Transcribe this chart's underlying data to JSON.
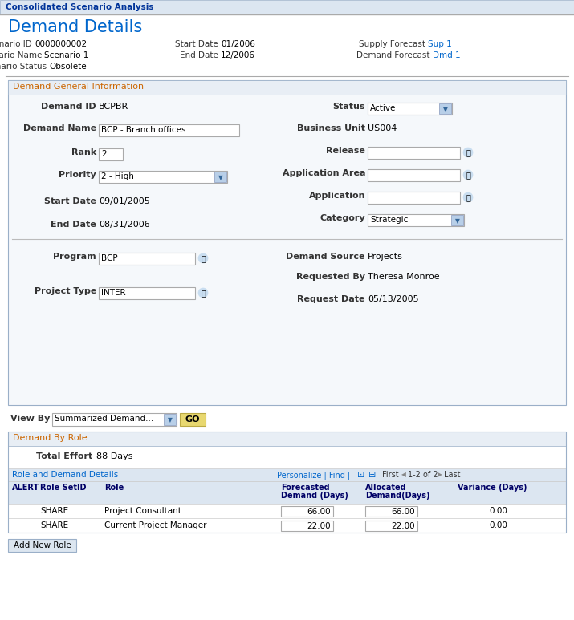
{
  "header_title": "Consolidated Scenario Analysis",
  "page_title": "Demand Details",
  "scenario_id_label": "Scenario ID",
  "scenario_id_value": "0000000002",
  "scenario_name_label": "Scenario Name",
  "scenario_name_value": "Scenario 1",
  "scenario_status_label": "Scenario Status",
  "scenario_status_value": "Obsolete",
  "start_date_label": "Start Date",
  "start_date_value": "01/2006",
  "end_date_label": "End Date",
  "end_date_value": "12/2006",
  "supply_forecast_label": "Supply Forecast",
  "supply_forecast_value": "Sup 1",
  "demand_forecast_label": "Demand Forecast",
  "demand_forecast_value": "Dmd 1",
  "section1_title": "Demand General Information",
  "demand_id_label": "Demand ID",
  "demand_id_value": "BCPBR",
  "demand_name_label": "Demand Name",
  "demand_name_value": "BCP - Branch offices",
  "rank_label": "Rank",
  "rank_value": "2",
  "priority_label": "Priority",
  "priority_value": "2 - High",
  "start_date2_label": "Start Date",
  "start_date2_value": "09/01/2005",
  "end_date2_label": "End Date",
  "end_date2_value": "08/31/2006",
  "status_label": "Status",
  "status_value": "Active",
  "business_unit_label": "Business Unit",
  "business_unit_value": "US004",
  "release_label": "Release",
  "app_area_label": "Application Area",
  "application_label": "Application",
  "category_label": "Category",
  "category_value": "Strategic",
  "program_label": "Program",
  "program_value": "BCP",
  "project_type_label": "Project Type",
  "project_type_value": "INTER",
  "demand_source_label": "Demand Source",
  "demand_source_value": "Projects",
  "requested_by_label": "Requested By",
  "requested_by_value": "Theresa Monroe",
  "request_date_label": "Request Date",
  "request_date_value": "05/13/2005",
  "view_by_label": "View By",
  "view_by_value": "Summarized Demand...",
  "section2_title": "Demand By Role",
  "total_effort_label": "Total Effort",
  "total_effort_value": "88 Days",
  "table_section_label": "Role and Demand Details",
  "table_col1": "ALERT",
  "table_col2": "Role SetID",
  "table_col3": "Role",
  "table_col4": "Forecasted\nDemand (Days)",
  "table_col5": "Allocated\nDemand(Days)",
  "table_col6": "Variance (Days)",
  "personalize_text": "Personalize | Find |",
  "first_text": "First",
  "nav_text": "1-2 of 2",
  "last_text": "Last",
  "row1_col2": "SHARE",
  "row1_col3": "Project Consultant",
  "row1_col4": "66.00",
  "row1_col5": "66.00",
  "row1_col6": "0.00",
  "row2_col2": "SHARE",
  "row2_col3": "Current Project Manager",
  "row2_col4": "22.00",
  "row2_col5": "22.00",
  "row2_col6": "0.00",
  "add_btn": "Add New Role",
  "bg_color": "#ffffff",
  "header_bg": "#dce6f1",
  "header_text_color": "#003399",
  "section_header_bg": "#e8eef5",
  "section_header_text": "#cc6600",
  "table_header_bg": "#dce6f1",
  "border_color": "#9aafc8",
  "blue_link": "#0066cc",
  "label_color": "#333333",
  "value_color": "#000000",
  "panel_bg": "#f5f8fb",
  "panel_border": "#9aafc8",
  "divider_color": "#aaaaaa",
  "row_border": "#cccccc",
  "col_header_color": "#000066"
}
